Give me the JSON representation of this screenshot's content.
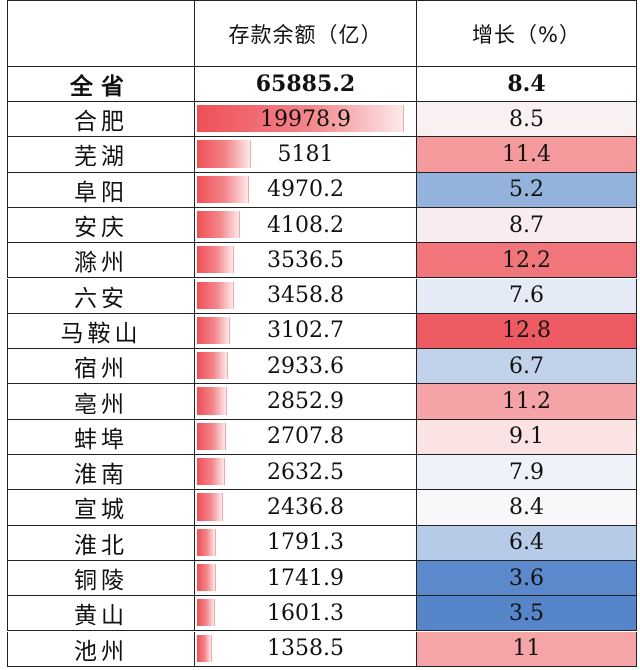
{
  "header": {
    "col_city": "",
    "col_deposit": "存款余额（亿）",
    "col_growth": "增长（%）"
  },
  "total": {
    "city": "全省",
    "deposit": "65885.2",
    "growth": "8.4"
  },
  "rows": [
    {
      "city": "合肥",
      "deposit": "19978.9",
      "deposit_value": 19978.9,
      "growth": "8.5",
      "growth_color": "#f8f0f1"
    },
    {
      "city": "芜湖",
      "deposit": "5181",
      "deposit_value": 5181,
      "growth": "11.4",
      "growth_color": "#f49a9c"
    },
    {
      "city": "阜阳",
      "deposit": "4970.2",
      "deposit_value": 4970.2,
      "growth": "5.2",
      "growth_color": "#93b3dc"
    },
    {
      "city": "安庆",
      "deposit": "4108.2",
      "deposit_value": 4108.2,
      "growth": "8.7",
      "growth_color": "#f8ecee"
    },
    {
      "city": "滁州",
      "deposit": "3536.5",
      "deposit_value": 3536.5,
      "growth": "12.2",
      "growth_color": "#f0767b"
    },
    {
      "city": "六安",
      "deposit": "3458.8",
      "deposit_value": 3458.8,
      "growth": "7.6",
      "growth_color": "#e4ebf6"
    },
    {
      "city": "马鞍山",
      "deposit": "3102.7",
      "deposit_value": 3102.7,
      "growth": "12.8",
      "growth_color": "#ee5a61"
    },
    {
      "city": "宿州",
      "deposit": "2933.6",
      "deposit_value": 2933.6,
      "growth": "6.7",
      "growth_color": "#c2d2ea"
    },
    {
      "city": "亳州",
      "deposit": "2852.9",
      "deposit_value": 2852.9,
      "growth": "11.2",
      "growth_color": "#f5a3a6"
    },
    {
      "city": "蚌埠",
      "deposit": "2707.8",
      "deposit_value": 2707.8,
      "growth": "9.1",
      "growth_color": "#fbe2e3"
    },
    {
      "city": "淮南",
      "deposit": "2632.5",
      "deposit_value": 2632.5,
      "growth": "7.9",
      "growth_color": "#eef2f9"
    },
    {
      "city": "宣城",
      "deposit": "2436.8",
      "deposit_value": 2436.8,
      "growth": "8.4",
      "growth_color": "#f8f7f9"
    },
    {
      "city": "淮北",
      "deposit": "1791.3",
      "deposit_value": 1791.3,
      "growth": "6.4",
      "growth_color": "#b6cbe7"
    },
    {
      "city": "铜陵",
      "deposit": "1741.9",
      "deposit_value": 1741.9,
      "growth": "3.6",
      "growth_color": "#5b89cb"
    },
    {
      "city": "黄山",
      "deposit": "1601.3",
      "deposit_value": 1601.3,
      "growth": "3.5",
      "growth_color": "#5785c9"
    },
    {
      "city": "池州",
      "deposit": "1358.5",
      "deposit_value": 1358.5,
      "growth": "11",
      "growth_color": "#f5a5a8"
    }
  ],
  "deposit_max": 19978.9
}
